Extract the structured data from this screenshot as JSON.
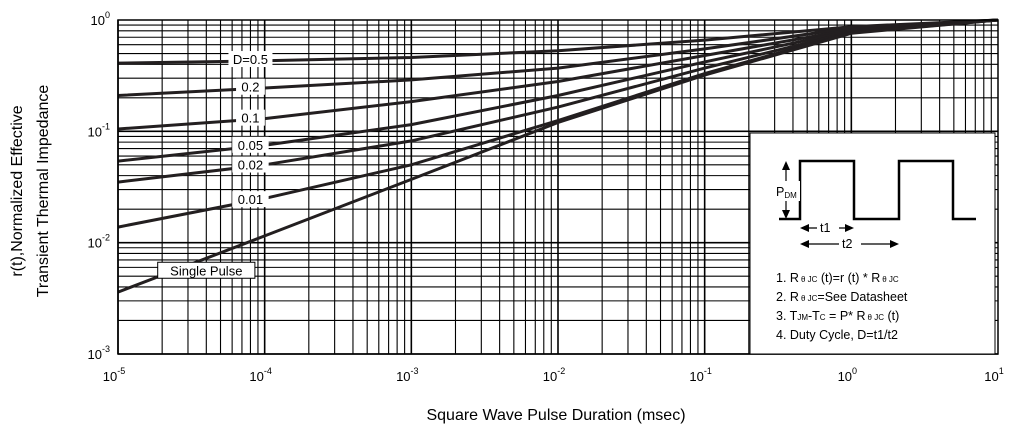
{
  "chart_data": {
    "type": "line",
    "xlabel": "Square Wave Pulse Duration (msec)",
    "ylabel": [
      "r(t),Normalized Effective",
      "Transient Thermal Impedance"
    ],
    "x_scale": "log",
    "y_scale": "log",
    "xlim": [
      1e-05,
      10
    ],
    "ylim": [
      0.001,
      1
    ],
    "grid": true,
    "x_ticks": [
      {
        "base": "10",
        "exp": "-5",
        "value": 1e-05
      },
      {
        "base": "10",
        "exp": "-4",
        "value": 0.0001
      },
      {
        "base": "10",
        "exp": "-3",
        "value": 0.001
      },
      {
        "base": "10",
        "exp": "-2",
        "value": 0.01
      },
      {
        "base": "10",
        "exp": "-1",
        "value": 0.1
      },
      {
        "base": "10",
        "exp": "0",
        "value": 1
      },
      {
        "base": "10",
        "exp": "1",
        "value": 10
      }
    ],
    "y_ticks": [
      {
        "base": "10",
        "exp": "0",
        "value": 1
      },
      {
        "base": "10",
        "exp": "-1",
        "value": 0.1
      },
      {
        "base": "10",
        "exp": "-2",
        "value": 0.01
      },
      {
        "base": "10",
        "exp": "-3",
        "value": 0.001
      }
    ],
    "series": [
      {
        "name": "D=0.5",
        "x": [
          1e-05,
          0.0001,
          0.001,
          0.01,
          0.1,
          1,
          10
        ],
        "y": [
          0.41,
          0.43,
          0.46,
          0.53,
          0.66,
          0.87,
          1.0
        ]
      },
      {
        "name": "0.2",
        "x": [
          1e-05,
          0.0001,
          0.001,
          0.01,
          0.1,
          1,
          10
        ],
        "y": [
          0.21,
          0.245,
          0.29,
          0.37,
          0.55,
          0.85,
          1.0
        ]
      },
      {
        "name": "0.1",
        "x": [
          1e-05,
          0.0001,
          0.001,
          0.01,
          0.1,
          1,
          10
        ],
        "y": [
          0.105,
          0.13,
          0.185,
          0.28,
          0.48,
          0.82,
          1.0
        ]
      },
      {
        "name": "0.05",
        "x": [
          1e-05,
          0.0001,
          0.001,
          0.01,
          0.1,
          1,
          10
        ],
        "y": [
          0.054,
          0.075,
          0.115,
          0.21,
          0.42,
          0.8,
          1.0
        ]
      },
      {
        "name": "0.02",
        "x": [
          1e-05,
          0.0001,
          0.001,
          0.01,
          0.1,
          1,
          10
        ],
        "y": [
          0.035,
          0.05,
          0.082,
          0.165,
          0.37,
          0.78,
          1.0
        ]
      },
      {
        "name": "0.01",
        "x": [
          1e-05,
          0.0001,
          0.001,
          0.01,
          0.1,
          1,
          10
        ],
        "y": [
          0.0138,
          0.025,
          0.05,
          0.125,
          0.33,
          0.77,
          1.0
        ]
      },
      {
        "name": "Single Pulse",
        "x": [
          1e-05,
          0.0001,
          0.001,
          0.01,
          0.1,
          1,
          10
        ],
        "y": [
          0.0036,
          0.0115,
          0.037,
          0.12,
          0.32,
          0.76,
          1.0
        ]
      }
    ]
  },
  "inset": {
    "pdm_base": "P",
    "pdm_sub": "DM",
    "t1_label": "t1",
    "t2_label": "t2",
    "notes": [
      {
        "a": "1. R",
        "b": "θ JC",
        "c": " (t)=r (t) * R",
        "d": "θ JC",
        "e": ""
      },
      {
        "a": "2. R",
        "b": "θ JC",
        "c": "=See Datasheet",
        "d": "",
        "e": ""
      },
      {
        "a": "3. T",
        "b": "JM",
        "c": "-T",
        "d": "C",
        "e": " = P* R",
        "f": "θ JC",
        "g": " (t)"
      },
      {
        "a": "4. Duty Cycle, D=t1/t2"
      }
    ]
  }
}
